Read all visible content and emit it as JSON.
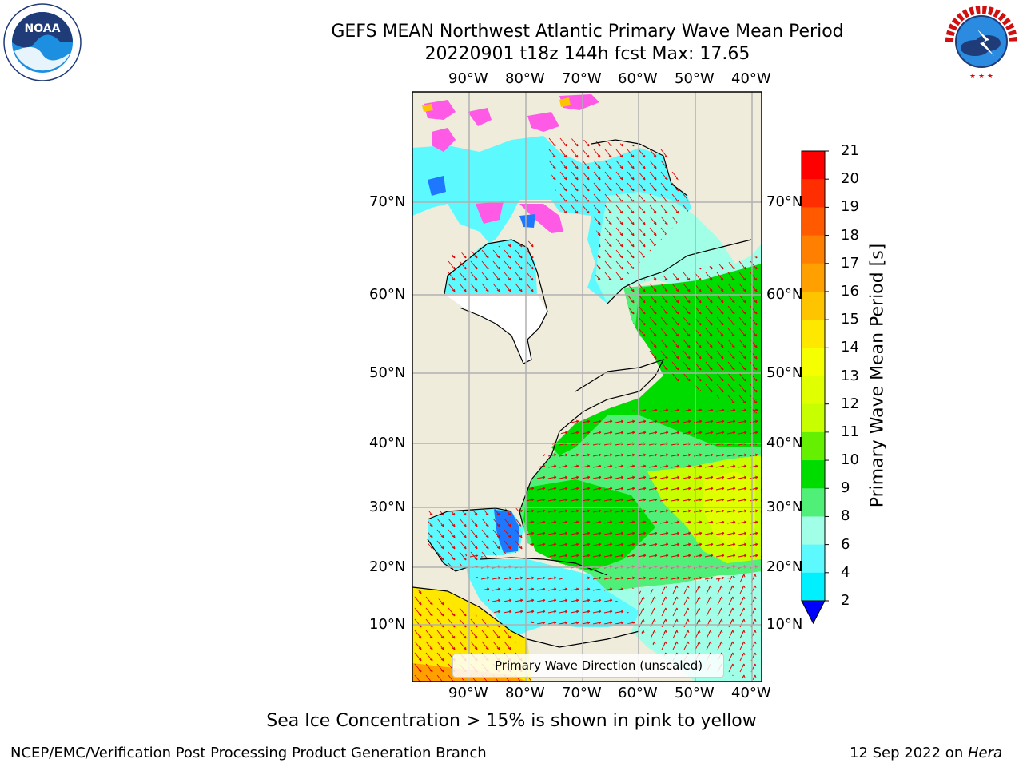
{
  "title": {
    "line1": "GEFS MEAN Northwest Atlantic Primary Wave Mean Period",
    "line2": "20220901 t18z 144h fcst   Max: 17.65"
  },
  "logos": {
    "noaa_text": "NOAA",
    "noaa_ring": "NATIONAL OCEANIC AND ATMOSPHERIC ADMINISTRATION · U.S. DEPARTMENT OF COMMERCE",
    "nws_ring": "NATIONAL WEATHER SERVICE"
  },
  "map": {
    "lon_labels": [
      "90°W",
      "80°W",
      "70°W",
      "60°W",
      "50°W",
      "40°W"
    ],
    "lat_labels": [
      "70°N",
      "60°N",
      "50°N",
      "40°N",
      "30°N",
      "20°N",
      "10°N"
    ],
    "legend_text": "Primary Wave Direction (unscaled)",
    "region": "Northwest Atlantic",
    "variable": "Primary Wave Mean Period",
    "max_value": 17.65
  },
  "colorbar": {
    "title": "Primary Wave Mean Period [s]",
    "ticks": [
      "21",
      "20",
      "19",
      "18",
      "17",
      "16",
      "15",
      "14",
      "13",
      "12",
      "11",
      "10",
      "9",
      "8",
      "6",
      "4",
      "2"
    ],
    "colors_top_to_bottom": [
      "#ff0000",
      "#ff2e00",
      "#ff5a00",
      "#ff8000",
      "#ffa000",
      "#ffc400",
      "#ffe800",
      "#f5ff00",
      "#e0ff00",
      "#c8ff00",
      "#64f000",
      "#00dc00",
      "#50f078",
      "#a0ffe6",
      "#5cfaff",
      "#00f0ff",
      "#00c8ff",
      "#0064ff"
    ],
    "extend_color": "#0000ff"
  },
  "colors": {
    "land": "#efecdc",
    "ice_free_white": "#ffffff",
    "grid": "#b0b0b0",
    "arrow": "#e00000"
  },
  "note": "Sea Ice Concentration > 15% is shown in pink to yellow",
  "footer": {
    "left": "NCEP/EMC/Verification Post Processing Product Generation Branch",
    "right_prefix": "12 Sep 2022 on ",
    "right_machine": "Hera"
  }
}
